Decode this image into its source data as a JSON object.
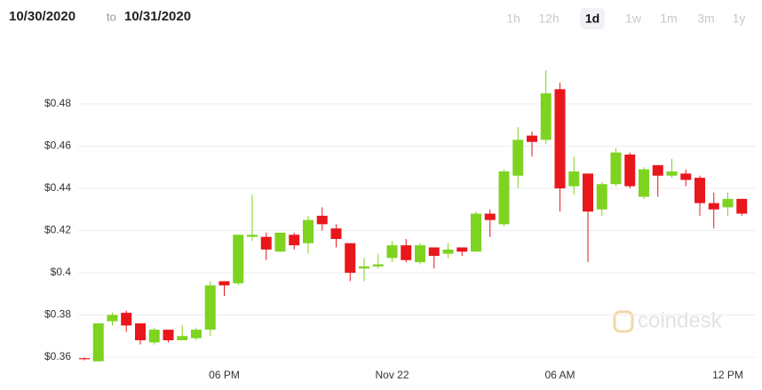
{
  "header": {
    "from": "10/30/2020",
    "to_word": "to",
    "to": "10/31/2020"
  },
  "ranges": [
    "1h",
    "12h",
    "1d",
    "1w",
    "1m",
    "3m",
    "1y"
  ],
  "selected_range": "1d",
  "watermark": "coindesk",
  "chart_data": {
    "type": "candlestick",
    "up_color": "#7ed321",
    "down_color": "#e8171c",
    "grid": true,
    "ylim": [
      0.356,
      0.5
    ],
    "yticks": [
      {
        "value": 0.36,
        "label": "$0.36"
      },
      {
        "value": 0.38,
        "label": "$0.38"
      },
      {
        "value": 0.4,
        "label": "$0.4"
      },
      {
        "value": 0.42,
        "label": "$0.42"
      },
      {
        "value": 0.44,
        "label": "$0.44"
      },
      {
        "value": 0.46,
        "label": "$0.46"
      },
      {
        "value": 0.48,
        "label": "$0.48"
      }
    ],
    "categories": [
      null,
      null,
      null,
      null,
      null,
      null,
      null,
      null,
      null,
      null,
      "06 PM",
      null,
      null,
      null,
      null,
      null,
      null,
      null,
      null,
      null,
      null,
      null,
      "Nov 22",
      null,
      null,
      null,
      null,
      null,
      null,
      null,
      null,
      null,
      null,
      null,
      "06 AM",
      null,
      null,
      null,
      null,
      null,
      null,
      null,
      null,
      null,
      null,
      null,
      "12 PM",
      null
    ],
    "open": [
      0.3595,
      0.358,
      0.377,
      0.381,
      0.376,
      0.367,
      0.373,
      0.368,
      0.369,
      0.373,
      0.396,
      0.395,
      0.417,
      0.417,
      0.41,
      0.418,
      0.414,
      0.427,
      0.421,
      0.414,
      0.402,
      0.403,
      0.407,
      0.413,
      0.405,
      0.412,
      0.409,
      0.412,
      0.41,
      0.428,
      0.423,
      0.446,
      0.465,
      0.463,
      0.487,
      0.441,
      0.447,
      0.43,
      0.442,
      0.456,
      0.436,
      0.451,
      0.446,
      0.447,
      0.445,
      0.433,
      0.431,
      0.435
    ],
    "high": [
      0.3598,
      0.376,
      0.381,
      0.382,
      0.376,
      0.374,
      0.373,
      0.375,
      0.374,
      0.396,
      0.396,
      0.418,
      0.437,
      0.419,
      0.419,
      0.419,
      0.427,
      0.431,
      0.423,
      0.414,
      0.407,
      0.409,
      0.415,
      0.416,
      0.414,
      0.412,
      0.414,
      0.412,
      0.429,
      0.43,
      0.449,
      0.469,
      0.467,
      0.496,
      0.49,
      0.455,
      0.447,
      0.443,
      0.459,
      0.457,
      0.45,
      0.451,
      0.454,
      0.449,
      0.446,
      0.438,
      0.438,
      0.435
    ],
    "low": [
      0.3585,
      0.358,
      0.375,
      0.372,
      0.366,
      0.366,
      0.367,
      0.368,
      0.368,
      0.37,
      0.389,
      0.394,
      0.415,
      0.406,
      0.41,
      0.411,
      0.409,
      0.42,
      0.412,
      0.396,
      0.396,
      0.402,
      0.405,
      0.405,
      0.404,
      0.402,
      0.407,
      0.408,
      0.41,
      0.417,
      0.422,
      0.44,
      0.455,
      0.461,
      0.429,
      0.437,
      0.405,
      0.427,
      0.441,
      0.44,
      0.435,
      0.436,
      0.445,
      0.441,
      0.427,
      0.421,
      0.427,
      0.427
    ],
    "close": [
      0.359,
      0.376,
      0.38,
      0.375,
      0.368,
      0.373,
      0.368,
      0.37,
      0.373,
      0.394,
      0.394,
      0.418,
      0.418,
      0.411,
      0.419,
      0.413,
      0.425,
      0.423,
      0.416,
      0.4,
      0.403,
      0.404,
      0.413,
      0.406,
      0.413,
      0.408,
      0.411,
      0.41,
      0.428,
      0.425,
      0.448,
      0.463,
      0.462,
      0.485,
      0.44,
      0.448,
      0.429,
      0.442,
      0.457,
      0.441,
      0.449,
      0.446,
      0.448,
      0.444,
      0.433,
      0.43,
      0.435,
      0.428
    ]
  }
}
